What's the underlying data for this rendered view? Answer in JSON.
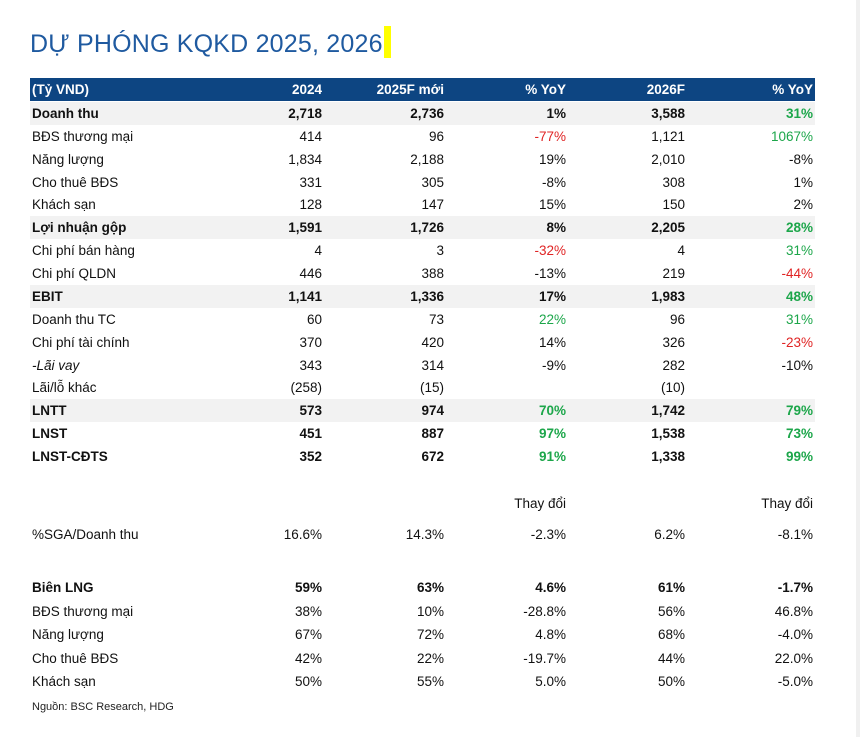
{
  "title": "DỰ PHÓNG KQKD 2025, 2026",
  "header": [
    "(Tỷ VND)",
    "2024",
    "2025F mới",
    "% YoY",
    "2026F",
    "% YoY"
  ],
  "colors": {
    "header_bg": "#0d4582",
    "title": "#1f5aa0",
    "positive": "#1ca64a",
    "negative": "#e02424",
    "shade": "#f2f2f2"
  },
  "rows": [
    {
      "label": "Doanh thu",
      "cells": [
        "2,718",
        "2,736",
        "1%",
        "3,588",
        "31%"
      ],
      "bold": true,
      "shade": true,
      "tone": [
        "",
        "",
        "",
        "",
        "g"
      ]
    },
    {
      "label": "BĐS thương mại",
      "cells": [
        "414",
        "96",
        "-77%",
        "1,121",
        "1067%"
      ],
      "tone": [
        "",
        "",
        "r",
        "",
        "g"
      ]
    },
    {
      "label": "Năng lượng",
      "cells": [
        "1,834",
        "2,188",
        "19%",
        "2,010",
        "-8%"
      ]
    },
    {
      "label": "Cho thuê BĐS",
      "cells": [
        "331",
        "305",
        "-8%",
        "308",
        "1%"
      ]
    },
    {
      "label": "Khách sạn",
      "cells": [
        "128",
        "147",
        "15%",
        "150",
        "2%"
      ]
    },
    {
      "label": "Lợi nhuận gộp",
      "cells": [
        "1,591",
        "1,726",
        "8%",
        "2,205",
        "28%"
      ],
      "bold": true,
      "shade": true,
      "tone": [
        "",
        "",
        "",
        "",
        "g"
      ]
    },
    {
      "label": "Chi phí bán hàng",
      "cells": [
        "4",
        "3",
        "-32%",
        "4",
        "31%"
      ],
      "tone": [
        "",
        "",
        "r",
        "",
        "g"
      ]
    },
    {
      "label": "Chi phí QLDN",
      "cells": [
        "446",
        "388",
        "-13%",
        "219",
        "-44%"
      ],
      "tone": [
        "",
        "",
        "",
        "",
        "r"
      ]
    },
    {
      "label": "EBIT",
      "cells": [
        "1,141",
        "1,336",
        "17%",
        "1,983",
        "48%"
      ],
      "bold": true,
      "shade": true,
      "tone": [
        "",
        "",
        "",
        "",
        "g"
      ]
    },
    {
      "label": "Doanh thu TC",
      "cells": [
        "60",
        "73",
        "22%",
        "96",
        "31%"
      ],
      "tone": [
        "",
        "",
        "g",
        "",
        "g"
      ]
    },
    {
      "label": "Chi phí tài chính",
      "cells": [
        "370",
        "420",
        "14%",
        "326",
        "-23%"
      ],
      "tone": [
        "",
        "",
        "",
        "",
        "r"
      ]
    },
    {
      "label": "-Lãi vay",
      "cells": [
        "343",
        "314",
        "-9%",
        "282",
        "-10%"
      ],
      "italic": true
    },
    {
      "label": "Lãi/lỗ khác",
      "cells": [
        "(258)",
        "(15)",
        "",
        "(10)",
        ""
      ]
    },
    {
      "label": "LNTT",
      "cells": [
        "573",
        "974",
        "70%",
        "1,742",
        "79%"
      ],
      "bold": true,
      "shade": true,
      "tone": [
        "",
        "",
        "g",
        "",
        "g"
      ]
    },
    {
      "label": "LNST",
      "cells": [
        "451",
        "887",
        "97%",
        "1,538",
        "73%"
      ],
      "bold": true,
      "tone": [
        "",
        "",
        "g",
        "",
        "g"
      ]
    },
    {
      "label": "LNST-CĐTS",
      "cells": [
        "352",
        "672",
        "91%",
        "1,338",
        "99%"
      ],
      "bold": true,
      "tone": [
        "",
        "",
        "g",
        "",
        "g"
      ]
    }
  ],
  "change_header": [
    "",
    "",
    "",
    "Thay đổi",
    "",
    "Thay đổi"
  ],
  "sga_row": {
    "label": "%SGA/Doanh thu",
    "cells": [
      "16.6%",
      "14.3%",
      "-2.3%",
      "6.2%",
      "-8.1%"
    ]
  },
  "margin_rows": [
    {
      "label": "Biên LNG",
      "cells": [
        "59%",
        "63%",
        "4.6%",
        "61%",
        "-1.7%"
      ],
      "bold": true
    },
    {
      "label": "BĐS thương mại",
      "cells": [
        "38%",
        "10%",
        "-28.8%",
        "56%",
        "46.8%"
      ]
    },
    {
      "label": "Năng lượng",
      "cells": [
        "67%",
        "72%",
        "4.8%",
        "68%",
        "-4.0%"
      ]
    },
    {
      "label": "Cho thuê BĐS",
      "cells": [
        "42%",
        "22%",
        "-19.7%",
        "44%",
        "22.0%"
      ]
    },
    {
      "label": "Khách sạn",
      "cells": [
        "50%",
        "55%",
        "5.0%",
        "50%",
        "-5.0%"
      ]
    }
  ],
  "source": "Nguồn: BSC Research, HDG"
}
